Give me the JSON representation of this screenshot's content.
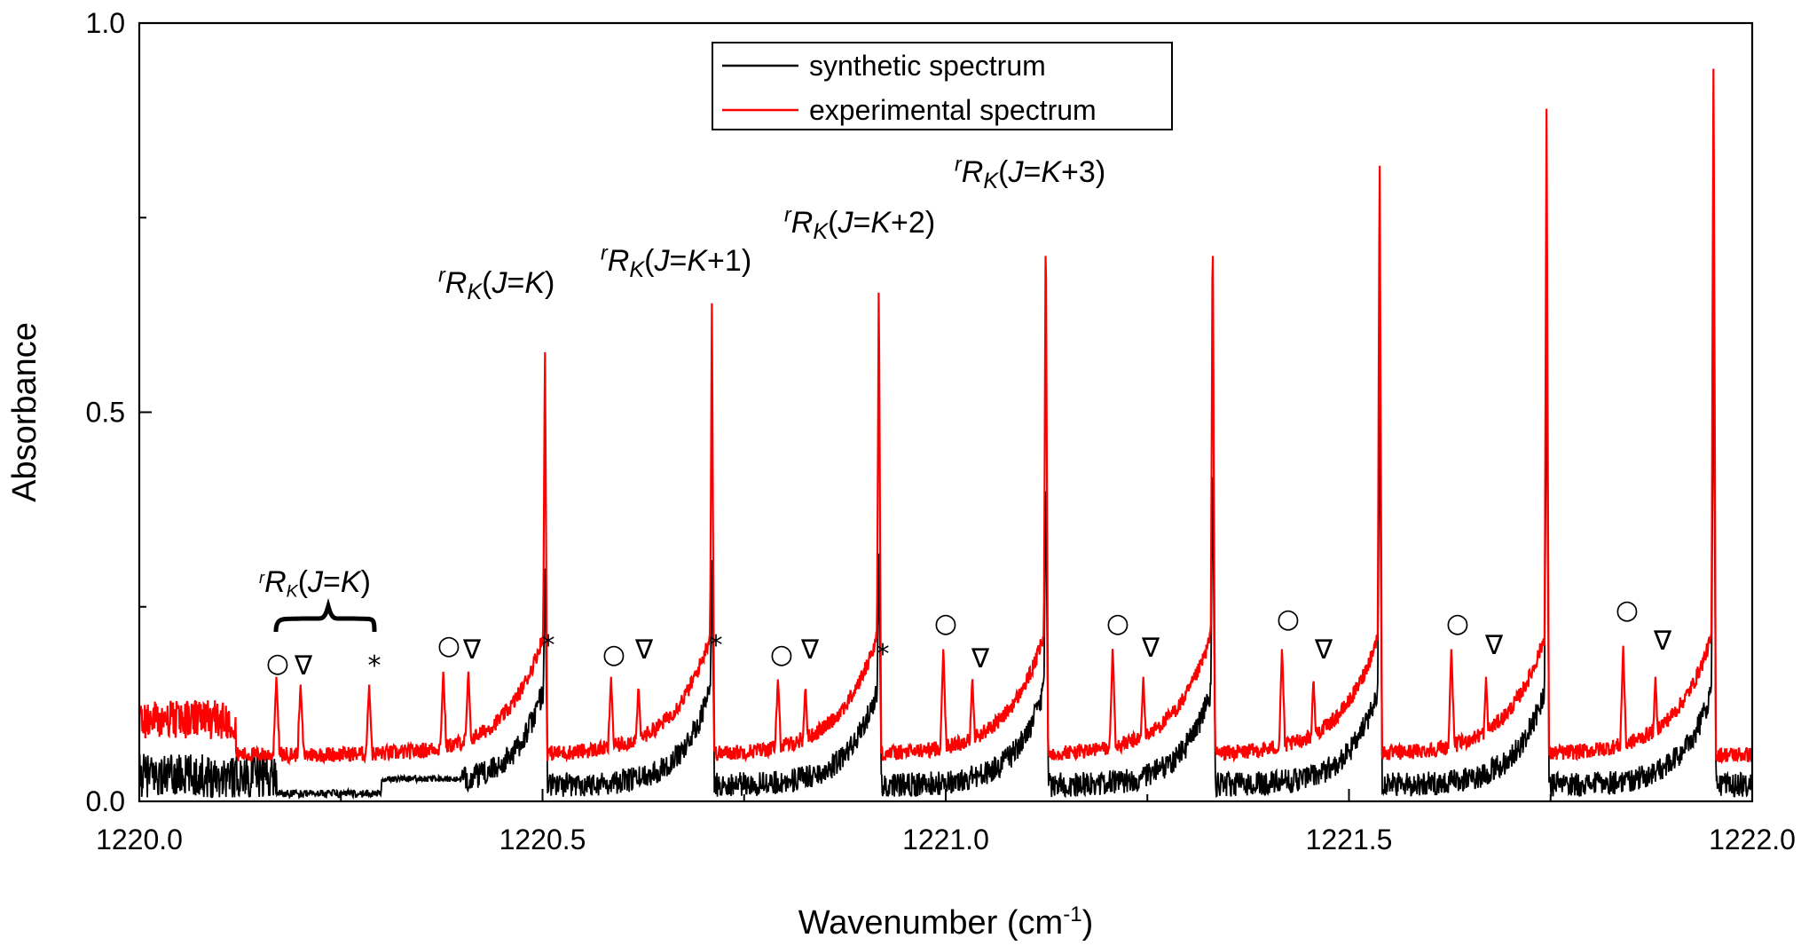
{
  "chart_data": {
    "type": "line",
    "title": "",
    "xlabel": "Wavenumber (cm",
    "xlabel_sup": "-1",
    "xlabel_tail": ")",
    "ylabel": "Absorbance",
    "xlim": [
      1220.0,
      1222.0
    ],
    "ylim": [
      0.0,
      1.0
    ],
    "x_ticks": [
      "1220.0",
      "1220.5",
      "1221.0",
      "1221.5",
      "1222.0"
    ],
    "y_ticks": [
      "0.0",
      "0.5",
      "1.0"
    ],
    "grid": false,
    "legend_position": "top-center",
    "series": [
      {
        "name": "synthetic spectrum",
        "color": "#000000",
        "baseline_level": 0.03,
        "peaks": [
          [
            1220.503,
            0.31
          ],
          [
            1220.71,
            0.31
          ],
          [
            1220.917,
            0.33
          ],
          [
            1221.124,
            0.43
          ],
          [
            1221.331,
            0.45
          ],
          [
            1221.538,
            0.54
          ],
          [
            1221.745,
            0.62
          ],
          [
            1221.952,
            0.63
          ]
        ]
      },
      {
        "name": "experimental spectrum",
        "color": "#ff0000",
        "baseline_level": 0.05,
        "peaks": [
          [
            1220.503,
            0.6
          ],
          [
            1220.71,
            0.64
          ],
          [
            1220.917,
            0.68
          ],
          [
            1221.124,
            0.76
          ],
          [
            1221.331,
            0.76
          ],
          [
            1221.538,
            0.85
          ],
          [
            1221.745,
            0.89
          ],
          [
            1221.952,
            0.98
          ]
        ],
        "small_peaks": [
          [
            1220.17,
            0.16
          ],
          [
            1220.2,
            0.15
          ],
          [
            1220.285,
            0.15
          ],
          [
            1220.377,
            0.17
          ],
          [
            1220.408,
            0.17
          ],
          [
            1220.585,
            0.16
          ],
          [
            1220.619,
            0.15
          ],
          [
            1220.792,
            0.16
          ],
          [
            1220.826,
            0.15
          ],
          [
            1220.997,
            0.2
          ],
          [
            1221.033,
            0.16
          ],
          [
            1221.207,
            0.2
          ],
          [
            1221.245,
            0.16
          ],
          [
            1221.417,
            0.2
          ],
          [
            1221.456,
            0.16
          ],
          [
            1221.627,
            0.2
          ],
          [
            1221.67,
            0.16
          ],
          [
            1221.84,
            0.2
          ],
          [
            1221.88,
            0.16
          ]
        ]
      }
    ],
    "annotations": {
      "rk_labels": [
        {
          "sup": "r",
          "main": "R",
          "sub": "K",
          "paren_open": "(",
          "j": "J",
          "eq": "=",
          "k": "K",
          "plus": "",
          "paren_close": ")"
        },
        {
          "sup": "r",
          "main": "R",
          "sub": "K",
          "paren_open": "(",
          "j": "J",
          "eq": "=",
          "k": "K",
          "plus": "+1",
          "paren_close": ")"
        },
        {
          "sup": "r",
          "main": "R",
          "sub": "K",
          "paren_open": "(",
          "j": "J",
          "eq": "=",
          "k": "K",
          "plus": "+2",
          "paren_close": ")"
        },
        {
          "sup": "r",
          "main": "R",
          "sub": "K",
          "paren_open": "(",
          "j": "J",
          "eq": "=",
          "k": "K",
          "plus": "+3",
          "paren_close": ")"
        },
        {
          "sup": "r",
          "main": "R",
          "sub": "K",
          "paren_open": "(",
          "j": "J",
          "eq": "=",
          "k": "K",
          "plus": "",
          "paren_close": ")"
        }
      ],
      "markers": [
        "○",
        "∇",
        "*",
        "○",
        "∇",
        "*",
        "○",
        "∇",
        "*",
        "○",
        "∇",
        "*",
        "○",
        "∇",
        "○",
        "∇",
        "○",
        "∇",
        "○",
        "∇",
        "○",
        "∇"
      ]
    }
  }
}
